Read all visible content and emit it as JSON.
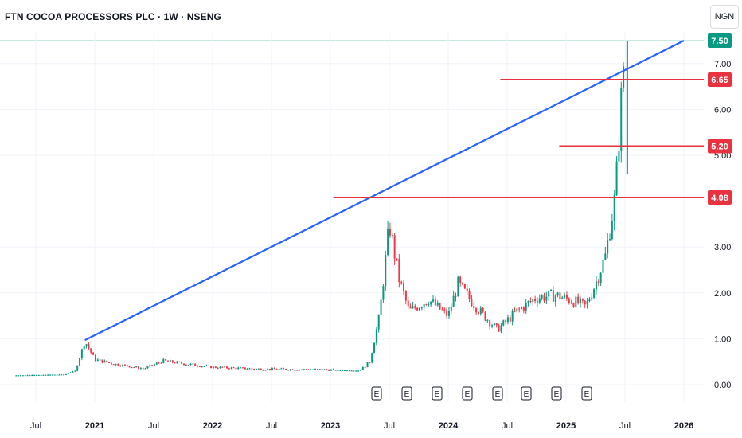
{
  "title": "FTN COCOA PROCESSORS PLC · 1W · NSENG",
  "currency": "NGN",
  "colors": {
    "up": "#089981",
    "down": "#f23645",
    "trend": "#2962ff",
    "level": "#e8323f",
    "grid": "#f0f3fa"
  },
  "chart_data": {
    "type": "candlestick",
    "ylim": [
      -0.1,
      7.6
    ],
    "y_ticks": [
      "0.00",
      "1.00",
      "2.00",
      "3.00",
      "4.00",
      "5.00",
      "6.00",
      "7.00"
    ],
    "x_ticks": [
      {
        "label": "Jul",
        "year": false
      },
      {
        "label": "2021",
        "year": true
      },
      {
        "label": "Jul",
        "year": false
      },
      {
        "label": "2022",
        "year": true
      },
      {
        "label": "Jul",
        "year": false
      },
      {
        "label": "2023",
        "year": true
      },
      {
        "label": "Jul",
        "year": false
      },
      {
        "label": "2024",
        "year": true
      },
      {
        "label": "Jul",
        "year": false
      },
      {
        "label": "2025",
        "year": true
      },
      {
        "label": "Jul",
        "year": false
      },
      {
        "label": "2026",
        "year": true
      }
    ],
    "earnings_marker": "E",
    "earnings_count": 8,
    "last_price": "7.50",
    "levels": [
      "6.65",
      "5.20",
      "4.08"
    ],
    "trendline": {
      "from": [
        "2020-12",
        0.97
      ],
      "to": [
        "2026-01",
        7.5
      ]
    },
    "price_path": [
      [
        "2020-05",
        0.2
      ],
      [
        "2020-10",
        0.22
      ],
      [
        "2020-11",
        0.3
      ],
      [
        "2020-12",
        0.95
      ],
      [
        "2021-01",
        0.55
      ],
      [
        "2021-03",
        0.45
      ],
      [
        "2021-06",
        0.35
      ],
      [
        "2021-08",
        0.52
      ],
      [
        "2021-10",
        0.46
      ],
      [
        "2022-01",
        0.38
      ],
      [
        "2022-06",
        0.34
      ],
      [
        "2022-12",
        0.33
      ],
      [
        "2023-04",
        0.3
      ],
      [
        "2023-05",
        0.5
      ],
      [
        "2023-06",
        1.5
      ],
      [
        "2023-07",
        3.5
      ],
      [
        "2023-08",
        2.3
      ],
      [
        "2023-09",
        1.6
      ],
      [
        "2023-11",
        1.85
      ],
      [
        "2024-01",
        1.5
      ],
      [
        "2024-02",
        2.2
      ],
      [
        "2024-04",
        1.65
      ],
      [
        "2024-06",
        1.2
      ],
      [
        "2024-08",
        1.6
      ],
      [
        "2024-10",
        1.9
      ],
      [
        "2024-12",
        1.95
      ],
      [
        "2025-02",
        1.8
      ],
      [
        "2025-03",
        1.7
      ],
      [
        "2025-04",
        2.2
      ],
      [
        "2025-05",
        2.8
      ],
      [
        "2025-06",
        4.1
      ],
      [
        "2025-07",
        7.5
      ]
    ]
  }
}
